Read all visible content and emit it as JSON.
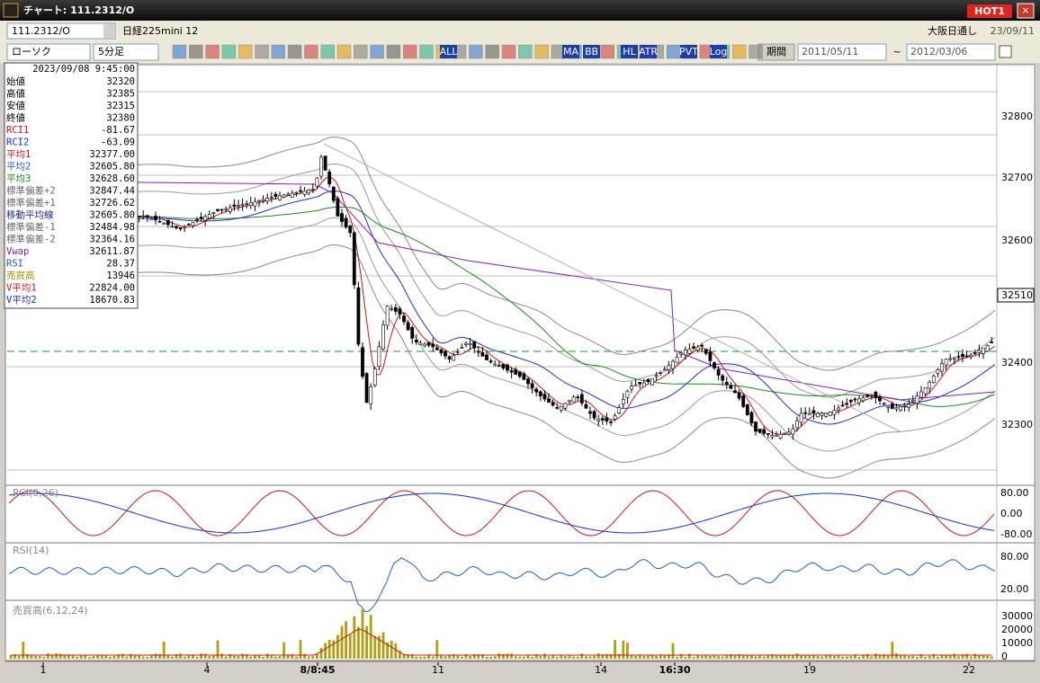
{
  "window": {
    "title": "チャート: 111.2312/O",
    "badge": "HOT1"
  },
  "toolbar": {
    "symbol": "111.2312/O",
    "name": "日経225mini 12",
    "session": "大阪日通し",
    "date": "23/09/11",
    "chart_type": "ローソク",
    "interval": "5分足",
    "period": "期間",
    "from": "2011/05/11",
    "tilde": "~",
    "to": "2012/03/06",
    "buttons": [
      "ALL",
      "MA",
      "BB",
      "HL",
      "ATR",
      "PVT",
      "Log"
    ]
  },
  "info": {
    "time": "2023/09/08 9:45:00",
    "rows": [
      [
        "始値",
        "32320"
      ],
      [
        "高値",
        "32385"
      ],
      [
        "安値",
        "32315"
      ],
      [
        "終値",
        "32380"
      ],
      [
        "RCI1",
        "-81.67"
      ],
      [
        "RCI2",
        "-63.09"
      ],
      [
        "平均1",
        "32377.00"
      ],
      [
        "平均2",
        "32605.80"
      ],
      [
        "平均3",
        "32628.60"
      ],
      [
        "標準偏差+2",
        "32847.44"
      ],
      [
        "標準偏差+1",
        "32726.62"
      ],
      [
        "移動平均線",
        "32605.80"
      ],
      [
        "標準偏差-1",
        "32484.98"
      ],
      [
        "標準偏差-2",
        "32364.16"
      ],
      [
        "Vwap",
        "32611.87"
      ],
      [
        "RSI",
        "28.37"
      ],
      [
        "売買高",
        "13946"
      ],
      [
        "V平均1",
        "22824.00"
      ],
      [
        "V平均2",
        "18670.83"
      ]
    ]
  },
  "price_axis": {
    "labels": [
      "32800",
      "32700",
      "32600",
      "32400",
      "32300"
    ],
    "current": "32510"
  },
  "rci": {
    "title": "RCI(9,26)",
    "labels": [
      "80.00",
      "0.00",
      "-80.00"
    ]
  },
  "rsi": {
    "title": "RSI(14)",
    "labels": [
      "80.00",
      "20.00"
    ]
  },
  "volume": {
    "title": "売買高(6,12,24)",
    "labels": [
      "30000",
      "20000",
      "10000",
      "0"
    ]
  },
  "x_axis": {
    "labels": [
      "1",
      "4",
      "8/8:45",
      "11",
      "14",
      "16:30",
      "19",
      "22"
    ]
  }
}
